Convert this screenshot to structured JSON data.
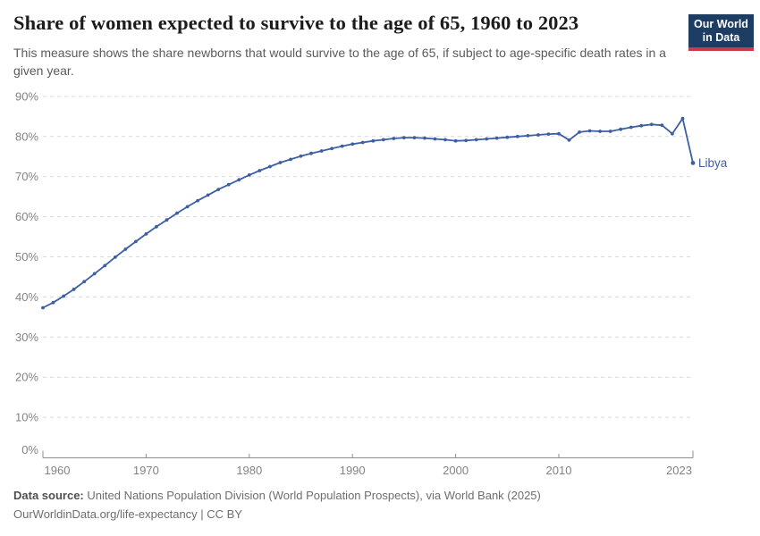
{
  "header": {
    "title": "Share of women expected to survive to the age of 65, 1960 to 2023",
    "subtitle": "This measure shows the share newborns that would survive to the age of 65, if subject to age-specific death rates in a given year.",
    "logo_line1": "Our World",
    "logo_line2": "in Data"
  },
  "footer": {
    "source_label": "Data source:",
    "source_text": "United Nations Population Division (World Population Prospects), via World Bank (2025)",
    "license_line": "OurWorldinData.org/life-expectancy | CC BY"
  },
  "colors": {
    "line": "#3c5fa4",
    "grid": "#dadada",
    "axis": "#8f8f8f",
    "tick_label": "#838383",
    "logo_bg": "#1d3d63",
    "logo_red": "#c93c47"
  },
  "chart_data": {
    "type": "line",
    "title": "Share of women expected to survive to the age of 65, 1960 to 2023",
    "entity": "Libya",
    "unit": "%",
    "grid": "horizontal-dashed",
    "legend_position": "end-of-line",
    "end_label": "Libya",
    "ylim": [
      0,
      90
    ],
    "yticks": [
      0,
      10,
      20,
      30,
      40,
      50,
      60,
      70,
      80,
      90
    ],
    "xticks": [
      1960,
      1970,
      1980,
      1990,
      2000,
      2010,
      2023
    ],
    "x": [
      1960,
      1961,
      1962,
      1963,
      1964,
      1965,
      1966,
      1967,
      1968,
      1969,
      1970,
      1971,
      1972,
      1973,
      1974,
      1975,
      1976,
      1977,
      1978,
      1979,
      1980,
      1981,
      1982,
      1983,
      1984,
      1985,
      1986,
      1987,
      1988,
      1989,
      1990,
      1991,
      1992,
      1993,
      1994,
      1995,
      1996,
      1997,
      1998,
      1999,
      2000,
      2001,
      2002,
      2003,
      2004,
      2005,
      2006,
      2007,
      2008,
      2009,
      2010,
      2011,
      2012,
      2013,
      2014,
      2015,
      2016,
      2017,
      2018,
      2019,
      2020,
      2021,
      2022,
      2023
    ],
    "series": [
      {
        "name": "Libya",
        "color": "#3c5fa4",
        "values": [
          37.3,
          38.6,
          40.2,
          41.9,
          43.8,
          45.8,
          47.8,
          49.9,
          51.9,
          53.8,
          55.7,
          57.5,
          59.2,
          60.9,
          62.5,
          64.0,
          65.4,
          66.8,
          68.0,
          69.2,
          70.4,
          71.5,
          72.5,
          73.5,
          74.3,
          75.1,
          75.8,
          76.4,
          77.0,
          77.6,
          78.1,
          78.5,
          78.9,
          79.2,
          79.5,
          79.7,
          79.7,
          79.6,
          79.4,
          79.2,
          78.9,
          79.0,
          79.2,
          79.4,
          79.6,
          79.8,
          80.0,
          80.2,
          80.4,
          80.6,
          80.7,
          79.1,
          81.1,
          81.4,
          81.3,
          81.3,
          81.8,
          82.3,
          82.7,
          83.0,
          82.8,
          80.7,
          84.5,
          73.4
        ]
      }
    ]
  }
}
